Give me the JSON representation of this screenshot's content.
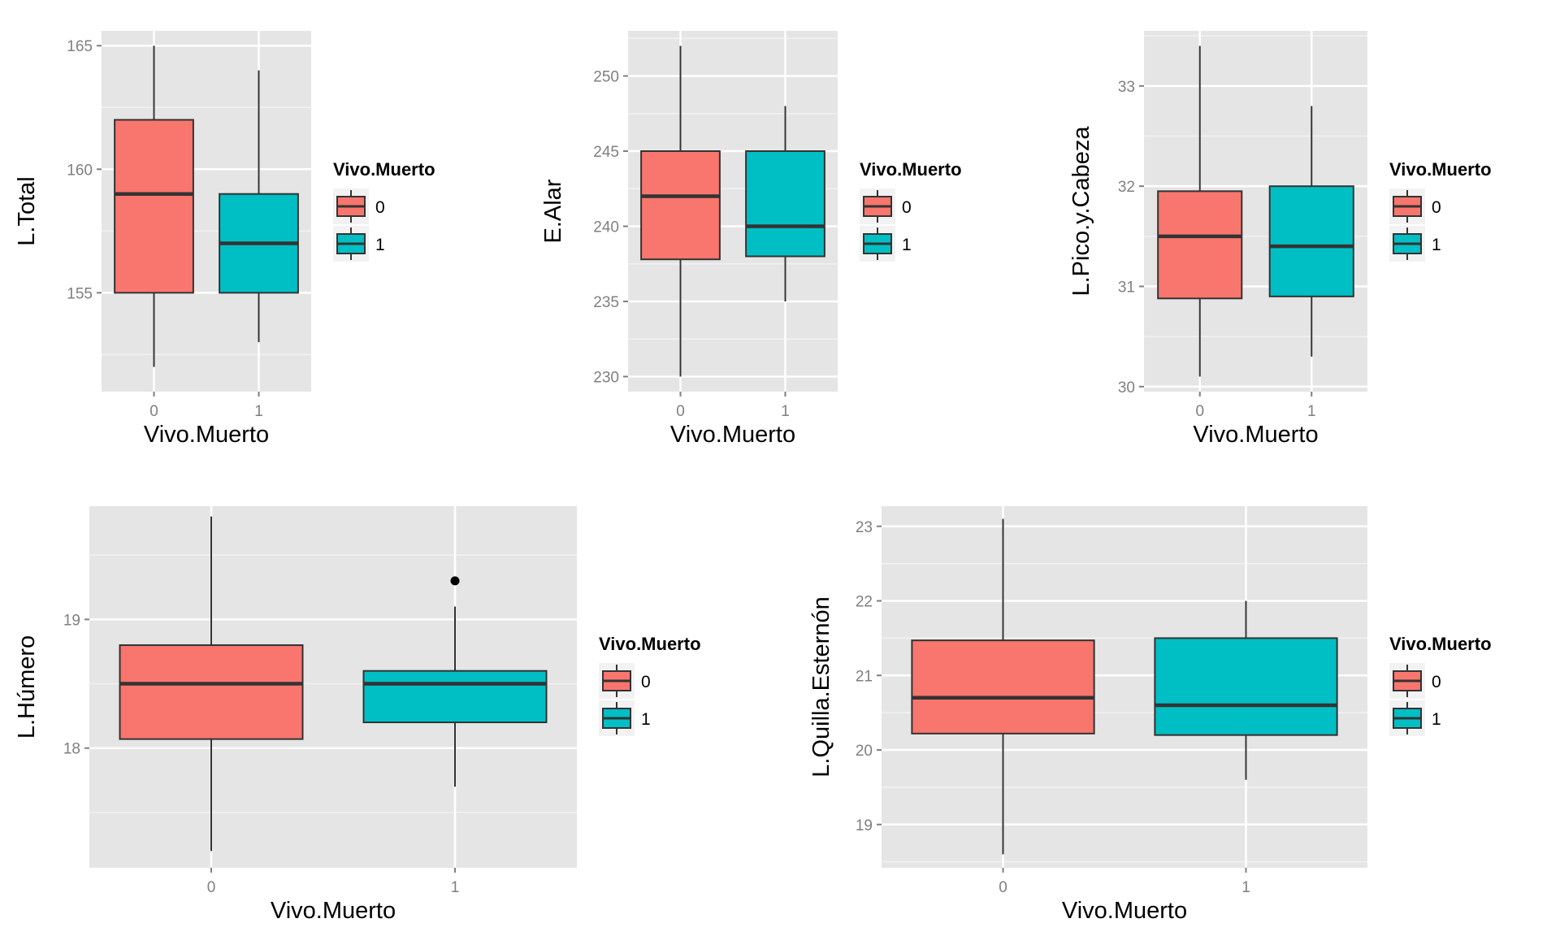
{
  "chart_data": [
    {
      "type": "boxplot",
      "ylabel": "L.Total",
      "xlabel": "Vivo.Muerto",
      "categories": [
        "0",
        "1"
      ],
      "ylim": [
        151,
        165.6
      ],
      "yticks": [
        "155",
        "160",
        "165"
      ],
      "ytick_values": [
        155,
        160,
        165
      ],
      "legend": {
        "title": "Vivo.Muerto",
        "position": "right",
        "entries": [
          "0",
          "1"
        ]
      },
      "boxes": [
        {
          "category": "0",
          "min": 152,
          "q1": 155,
          "median": 159,
          "q3": 162,
          "max": 165,
          "outliers": []
        },
        {
          "category": "1",
          "min": 153,
          "q1": 155,
          "median": 157,
          "q3": 159,
          "max": 164,
          "outliers": []
        }
      ]
    },
    {
      "type": "boxplot",
      "ylabel": "E.Alar",
      "xlabel": "Vivo.Muerto",
      "categories": [
        "0",
        "1"
      ],
      "ylim": [
        229,
        253
      ],
      "yticks": [
        "230",
        "235",
        "240",
        "245",
        "250"
      ],
      "ytick_values": [
        230,
        235,
        240,
        245,
        250
      ],
      "legend": {
        "title": "Vivo.Muerto",
        "position": "right",
        "entries": [
          "0",
          "1"
        ]
      },
      "boxes": [
        {
          "category": "0",
          "min": 230,
          "q1": 237.8,
          "median": 242,
          "q3": 245,
          "max": 252,
          "outliers": []
        },
        {
          "category": "1",
          "min": 235,
          "q1": 238,
          "median": 240,
          "q3": 245,
          "max": 248,
          "outliers": []
        }
      ]
    },
    {
      "type": "boxplot",
      "ylabel": "L.Pico.y.Cabeza",
      "xlabel": "Vivo.Muerto",
      "categories": [
        "0",
        "1"
      ],
      "ylim": [
        29.95,
        33.55
      ],
      "yticks": [
        "30",
        "31",
        "32",
        "33"
      ],
      "ytick_values": [
        30,
        31,
        32,
        33
      ],
      "legend": {
        "title": "Vivo.Muerto",
        "position": "right",
        "entries": [
          "0",
          "1"
        ]
      },
      "boxes": [
        {
          "category": "0",
          "min": 30.1,
          "q1": 30.88,
          "median": 31.5,
          "q3": 31.95,
          "max": 33.4,
          "outliers": []
        },
        {
          "category": "1",
          "min": 30.3,
          "q1": 30.9,
          "median": 31.4,
          "q3": 32,
          "max": 32.8,
          "outliers": []
        }
      ]
    },
    {
      "type": "boxplot",
      "ylabel": "L.Húmero",
      "xlabel": "Vivo.Muerto",
      "categories": [
        "0",
        "1"
      ],
      "ylim": [
        17.07,
        19.88
      ],
      "yticks": [
        "18",
        "19"
      ],
      "ytick_values": [
        18,
        19
      ],
      "legend": {
        "title": "Vivo.Muerto",
        "position": "right",
        "entries": [
          "0",
          "1"
        ]
      },
      "boxes": [
        {
          "category": "0",
          "min": 17.2,
          "q1": 18.07,
          "median": 18.5,
          "q3": 18.8,
          "max": 19.8,
          "outliers": []
        },
        {
          "category": "1",
          "min": 17.7,
          "q1": 18.2,
          "median": 18.5,
          "q3": 18.6,
          "max": 19.1,
          "outliers": [
            19.3
          ]
        }
      ]
    },
    {
      "type": "boxplot",
      "ylabel": "L.Quilla.Esternón",
      "xlabel": "Vivo.Muerto",
      "categories": [
        "0",
        "1"
      ],
      "ylim": [
        18.42,
        23.27
      ],
      "yticks": [
        "19",
        "20",
        "21",
        "22",
        "23"
      ],
      "ytick_values": [
        19,
        20,
        21,
        22,
        23
      ],
      "legend": {
        "title": "Vivo.Muerto",
        "position": "right",
        "entries": [
          "0",
          "1"
        ]
      },
      "boxes": [
        {
          "category": "0",
          "min": 18.6,
          "q1": 20.22,
          "median": 20.7,
          "q3": 21.47,
          "max": 23.1,
          "outliers": []
        },
        {
          "category": "1",
          "min": 19.6,
          "q1": 20.2,
          "median": 20.6,
          "q3": 21.5,
          "max": 22,
          "outliers": []
        }
      ]
    }
  ],
  "colors": {
    "group_0": "#F8766D",
    "group_1": "#00BFC4",
    "panel_background": "#E5E5E5",
    "grid_major": "#FFFFFF",
    "grid_minor": "#F2F2F2",
    "box_outline": "#333333",
    "tick_text": "#7F7F7F"
  }
}
